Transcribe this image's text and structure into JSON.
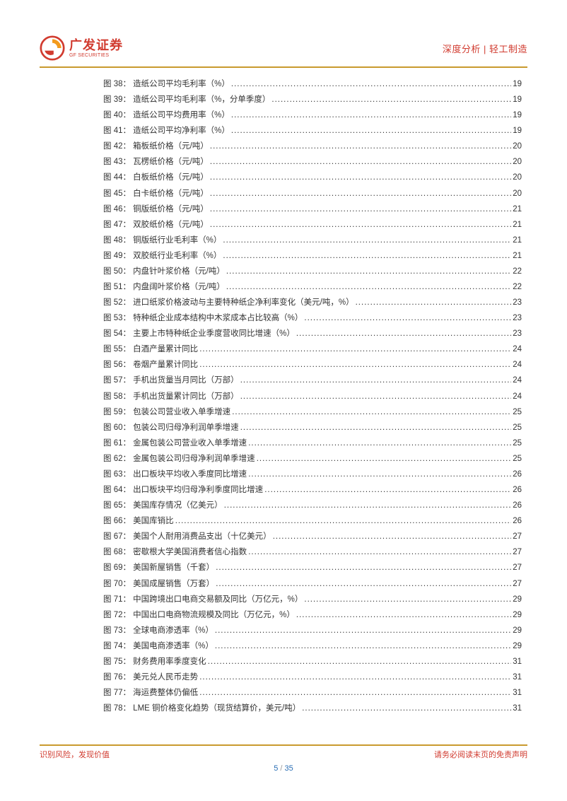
{
  "header": {
    "logo_cn": "广发证券",
    "logo_en": "GF SECURITIES",
    "right_text": "深度分析 | 轻工制造",
    "logo_colors": {
      "orange": "#f39b1d",
      "red": "#d13b2f"
    }
  },
  "toc": [
    {
      "n": 38,
      "title": "造纸公司平均毛利率（%）",
      "page": 19
    },
    {
      "n": 39,
      "title": "造纸公司平均毛利率（%，分单季度）",
      "page": 19
    },
    {
      "n": 40,
      "title": "造纸公司平均费用率（%）",
      "page": 19
    },
    {
      "n": 41,
      "title": "造纸公司平均净利率（%）",
      "page": 19
    },
    {
      "n": 42,
      "title": "箱板纸价格（元/吨）",
      "page": 20
    },
    {
      "n": 43,
      "title": "瓦楞纸价格（元/吨）",
      "page": 20
    },
    {
      "n": 44,
      "title": "白板纸价格（元/吨）",
      "page": 20
    },
    {
      "n": 45,
      "title": "白卡纸价格（元/吨）",
      "page": 20
    },
    {
      "n": 46,
      "title": "铜版纸价格（元/吨）",
      "page": 21
    },
    {
      "n": 47,
      "title": "双胶纸价格（元/吨）",
      "page": 21
    },
    {
      "n": 48,
      "title": "铜版纸行业毛利率（%）",
      "page": 21
    },
    {
      "n": 49,
      "title": "双胶纸行业毛利率（%）",
      "page": 21
    },
    {
      "n": 50,
      "title": "内盘针叶浆价格（元/吨）",
      "page": 22
    },
    {
      "n": 51,
      "title": "内盘阔叶浆价格（元/吨）",
      "page": 22
    },
    {
      "n": 52,
      "title": "进口纸浆价格波动与主要特种纸企净利率变化（美元/吨，%）",
      "page": 23
    },
    {
      "n": 53,
      "title": "特种纸企业成本结构中木浆成本占比较高（%）",
      "page": 23
    },
    {
      "n": 54,
      "title": "主要上市特种纸企业季度营收同比增速（%）",
      "page": 23
    },
    {
      "n": 55,
      "title": "白酒产量累计同比",
      "page": 24
    },
    {
      "n": 56,
      "title": "卷烟产量累计同比",
      "page": 24
    },
    {
      "n": 57,
      "title": "手机出货量当月同比（万部）",
      "page": 24
    },
    {
      "n": 58,
      "title": "手机出货量累计同比（万部）",
      "page": 24
    },
    {
      "n": 59,
      "title": "包装公司营业收入单季增速",
      "page": 25
    },
    {
      "n": 60,
      "title": "包装公司归母净利润单季增速",
      "page": 25
    },
    {
      "n": 61,
      "title": "金属包装公司营业收入单季增速",
      "page": 25
    },
    {
      "n": 62,
      "title": "金属包装公司归母净利润单季增速",
      "page": 25
    },
    {
      "n": 63,
      "title": "出口板块平均收入季度同比增速",
      "page": 26
    },
    {
      "n": 64,
      "title": "出口板块平均归母净利季度同比增速",
      "page": 26
    },
    {
      "n": 65,
      "title": "美国库存情况（亿美元）",
      "page": 26
    },
    {
      "n": 66,
      "title": "美国库销比",
      "page": 26
    },
    {
      "n": 67,
      "title": "美国个人耐用消费品支出（十亿美元）",
      "page": 27
    },
    {
      "n": 68,
      "title": "密歇根大学美国消费者信心指数",
      "page": 27
    },
    {
      "n": 69,
      "title": "美国新屋销售（千套）",
      "page": 27
    },
    {
      "n": 70,
      "title": "美国成屋销售（万套）",
      "page": 27
    },
    {
      "n": 71,
      "title": "中国跨境出口电商交易额及同比（万亿元，%）",
      "page": 29
    },
    {
      "n": 72,
      "title": "中国出口电商物流规模及同比（万亿元，%）",
      "page": 29
    },
    {
      "n": 73,
      "title": "全球电商渗透率（%）",
      "page": 29
    },
    {
      "n": 74,
      "title": "美国电商渗透率（%）",
      "page": 29
    },
    {
      "n": 75,
      "title": "财务费用率季度变化",
      "page": 31
    },
    {
      "n": 76,
      "title": "美元兑人民币走势",
      "page": 31
    },
    {
      "n": 77,
      "title": "海运费整体仍偏低",
      "page": 31
    },
    {
      "n": 78,
      "title": "LME 铜价格变化趋势（现货结算价，美元/吨）",
      "page": 31
    }
  ],
  "toc_prefix": "图 ",
  "toc_suffix": "：",
  "footer": {
    "left": "识别风险，发现价值",
    "right": "请务必阅读末页的免责声明",
    "current_page": "5",
    "total_pages": "35"
  }
}
